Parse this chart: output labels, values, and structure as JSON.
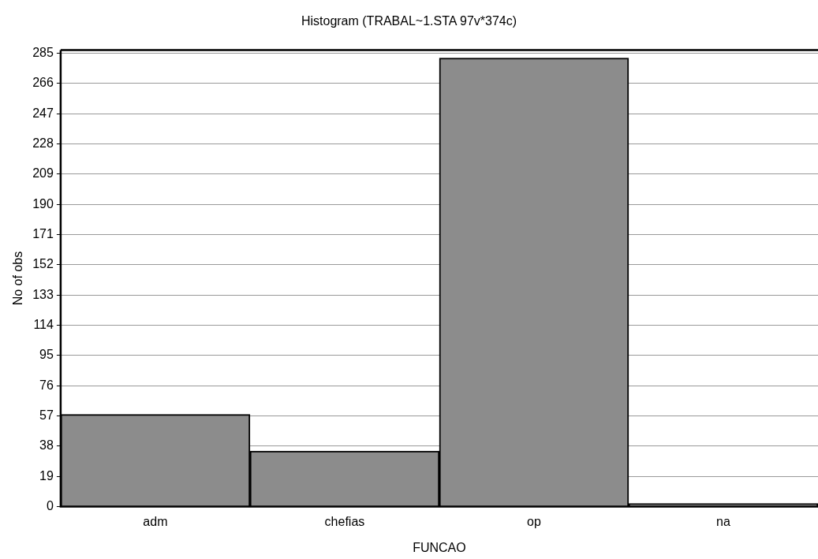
{
  "chart_data": {
    "type": "bar",
    "title": "Histogram (TRABAL~1.STA 97v*374c)",
    "xlabel": "FUNCAO",
    "ylabel": "No of obs",
    "categories": [
      "adm",
      "chefias",
      "op",
      "na"
    ],
    "values": [
      58,
      35,
      282,
      2
    ],
    "color": "#8c8c8c",
    "ylim": [
      0,
      287
    ],
    "yticks": [
      0,
      19,
      38,
      57,
      76,
      95,
      114,
      133,
      152,
      171,
      190,
      209,
      228,
      247,
      266,
      285
    ],
    "grid": "y",
    "legend": false
  }
}
